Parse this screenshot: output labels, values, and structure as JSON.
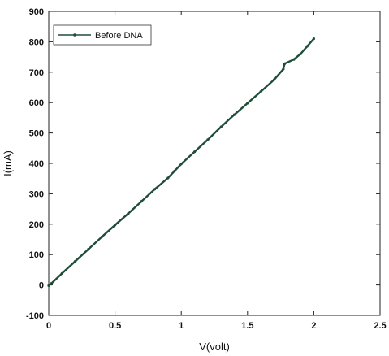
{
  "chart_data": {
    "type": "line",
    "xlabel": "V(volt)",
    "ylabel": "I(mA)",
    "xlim": [
      0,
      2.5
    ],
    "ylim": [
      -100,
      900
    ],
    "x_ticks": [
      0,
      0.5,
      1,
      1.5,
      2,
      2.5
    ],
    "x_tick_labels": [
      "0",
      "0.5",
      "1",
      "1.5",
      "2",
      "2.5"
    ],
    "y_ticks": [
      -100,
      0,
      100,
      200,
      300,
      400,
      500,
      600,
      700,
      800,
      900
    ],
    "y_tick_labels": [
      "-100",
      "0",
      "100",
      "200",
      "300",
      "400",
      "500",
      "600",
      "700",
      "800",
      "900"
    ],
    "grid": false,
    "legend_position": "top-left",
    "series": [
      {
        "name": "Before DNA",
        "color": "#1f4d3a",
        "x": [
          0,
          0.02,
          0.1,
          0.2,
          0.3,
          0.4,
          0.5,
          0.6,
          0.7,
          0.8,
          0.9,
          0.95,
          1.0,
          1.1,
          1.2,
          1.3,
          1.4,
          1.5,
          1.6,
          1.7,
          1.77,
          1.78,
          1.85,
          1.9,
          1.95,
          2.0
        ],
        "y": [
          -2,
          5,
          38,
          78,
          118,
          158,
          197,
          235,
          275,
          315,
          352,
          375,
          398,
          438,
          478,
          520,
          560,
          598,
          636,
          675,
          710,
          728,
          742,
          760,
          785,
          810
        ]
      }
    ]
  }
}
